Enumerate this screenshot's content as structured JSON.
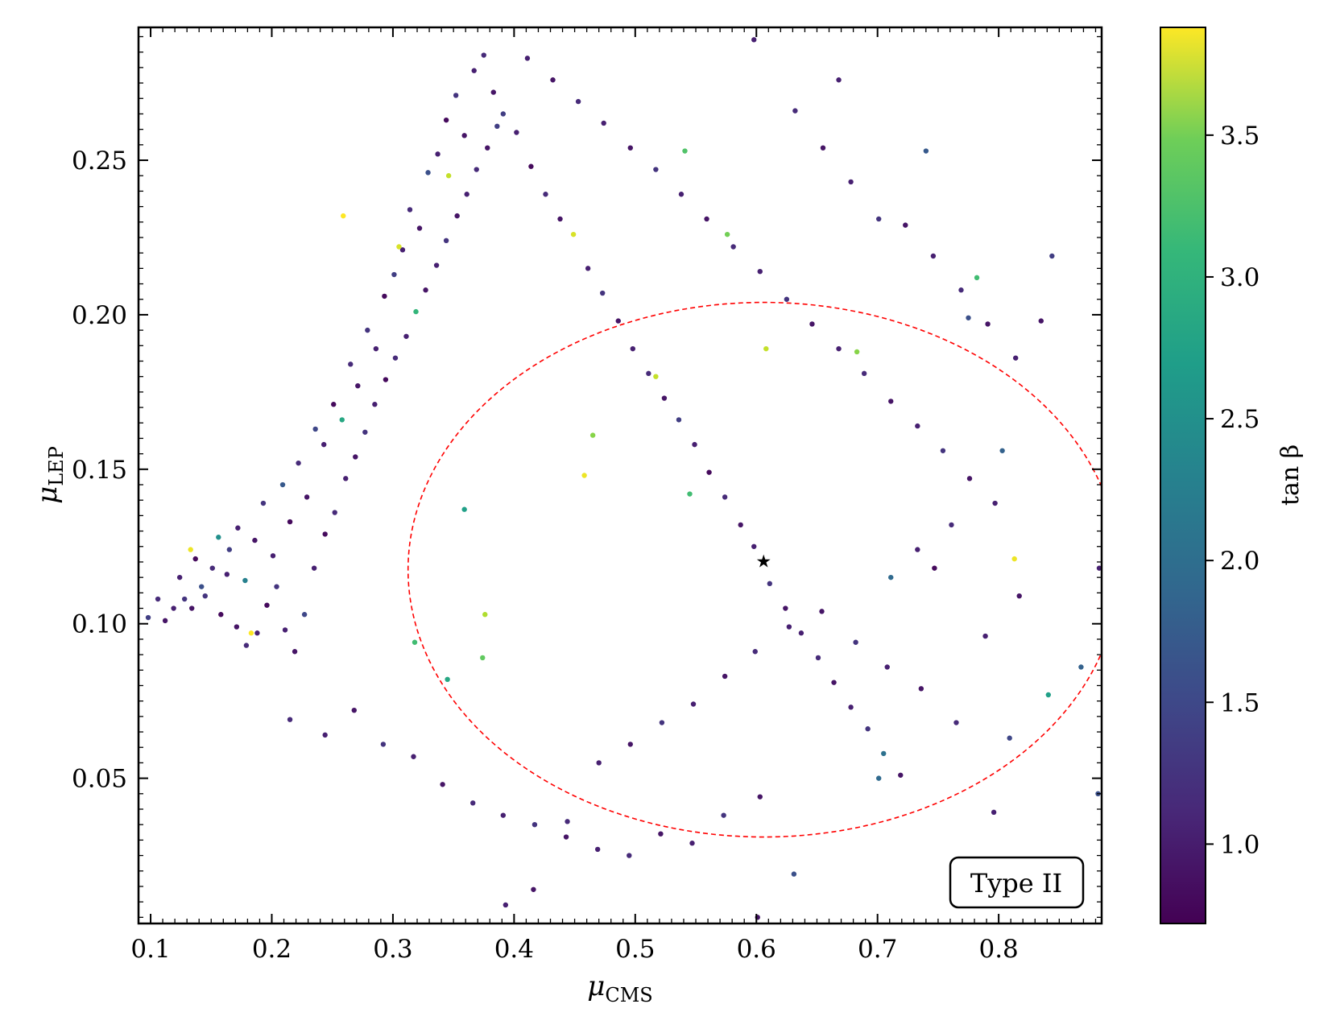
{
  "chart_data": {
    "type": "scatter",
    "title": "",
    "xlabel": {
      "symbol": "μ",
      "subscript": "CMS"
    },
    "ylabel": {
      "symbol": "μ",
      "subscript": "LEP"
    },
    "xlim": [
      0.09,
      0.885
    ],
    "ylim": [
      0.003,
      0.293
    ],
    "xticks": [
      0.1,
      0.2,
      0.3,
      0.4,
      0.5,
      0.6,
      0.7,
      0.8
    ],
    "xtick_labels": [
      "0.1",
      "0.2",
      "0.3",
      "0.4",
      "0.5",
      "0.6",
      "0.7",
      "0.8"
    ],
    "yticks": [
      0.05,
      0.1,
      0.15,
      0.2,
      0.25
    ],
    "ytick_labels": [
      "0.05",
      "0.10",
      "0.15",
      "0.20",
      "0.25"
    ],
    "grid": false,
    "colorbar": {
      "label": "tan β",
      "colormap": "viridis",
      "range": [
        0.72,
        3.88
      ],
      "ticks": [
        1.0,
        1.5,
        2.0,
        2.5,
        3.0,
        3.5
      ],
      "tick_labels": [
        "1.0",
        "1.5",
        "2.0",
        "2.5",
        "3.0",
        "3.5"
      ]
    },
    "best_fit_marker": {
      "x": 0.606,
      "y": 0.12,
      "color": "#ff00ff",
      "shape": "star"
    },
    "ellipse": {
      "center_x": 0.606,
      "center_y": 0.1175,
      "semi_axis_x": 0.2935,
      "semi_axis_y": 0.0865,
      "color": "#ff0000",
      "style": "dashed"
    },
    "annotation": "Type II",
    "series": [
      {
        "description_note": "",
        "points": [
          [
            0.128,
            0.108,
            1.2
          ],
          [
            0.134,
            0.105,
            0.9
          ],
          [
            0.142,
            0.112,
            1.5
          ],
          [
            0.151,
            0.118,
            1.1
          ],
          [
            0.158,
            0.103,
            0.8
          ],
          [
            0.165,
            0.124,
            1.3
          ],
          [
            0.172,
            0.131,
            1.0
          ],
          [
            0.178,
            0.114,
            2.1
          ],
          [
            0.186,
            0.127,
            0.9
          ],
          [
            0.193,
            0.139,
            1.2
          ],
          [
            0.201,
            0.122,
            1.0
          ],
          [
            0.209,
            0.145,
            1.6
          ],
          [
            0.215,
            0.133,
            0.8
          ],
          [
            0.222,
            0.152,
            1.1
          ],
          [
            0.229,
            0.141,
            0.9
          ],
          [
            0.236,
            0.163,
            1.4
          ],
          [
            0.243,
            0.158,
            1.0
          ],
          [
            0.251,
            0.171,
            0.8
          ],
          [
            0.258,
            0.166,
            2.6
          ],
          [
            0.265,
            0.184,
            1.1
          ],
          [
            0.271,
            0.177,
            0.9
          ],
          [
            0.279,
            0.195,
            1.2
          ],
          [
            0.286,
            0.189,
            1.0
          ],
          [
            0.293,
            0.206,
            0.8
          ],
          [
            0.301,
            0.213,
            1.3
          ],
          [
            0.308,
            0.221,
            1.0
          ],
          [
            0.314,
            0.234,
            1.1
          ],
          [
            0.322,
            0.228,
            0.9
          ],
          [
            0.329,
            0.246,
            1.5
          ],
          [
            0.337,
            0.252,
            1.0
          ],
          [
            0.344,
            0.263,
            0.8
          ],
          [
            0.352,
            0.271,
            1.2
          ],
          [
            0.359,
            0.258,
            0.9
          ],
          [
            0.367,
            0.279,
            1.0
          ],
          [
            0.375,
            0.284,
            1.1
          ],
          [
            0.383,
            0.272,
            0.9
          ],
          [
            0.391,
            0.265,
            1.3
          ],
          [
            0.402,
            0.259,
            1.0
          ],
          [
            0.414,
            0.248,
            0.8
          ],
          [
            0.426,
            0.239,
            1.1
          ],
          [
            0.438,
            0.231,
            0.9
          ],
          [
            0.449,
            0.226,
            3.7
          ],
          [
            0.461,
            0.215,
            1.0
          ],
          [
            0.473,
            0.207,
            1.2
          ],
          [
            0.486,
            0.198,
            0.9
          ],
          [
            0.498,
            0.189,
            1.0
          ],
          [
            0.511,
            0.181,
            1.1
          ],
          [
            0.524,
            0.173,
            0.9
          ],
          [
            0.536,
            0.166,
            1.3
          ],
          [
            0.549,
            0.158,
            1.0
          ],
          [
            0.561,
            0.149,
            0.8
          ],
          [
            0.574,
            0.141,
            1.1
          ],
          [
            0.587,
            0.132,
            0.9
          ],
          [
            0.598,
            0.125,
            1.0
          ],
          [
            0.611,
            0.113,
            1.2
          ],
          [
            0.624,
            0.105,
            0.9
          ],
          [
            0.637,
            0.097,
            1.0
          ],
          [
            0.651,
            0.089,
            1.1
          ],
          [
            0.664,
            0.081,
            0.9
          ],
          [
            0.678,
            0.073,
            1.0
          ],
          [
            0.692,
            0.066,
            1.2
          ],
          [
            0.705,
            0.058,
            1.9
          ],
          [
            0.719,
            0.051,
            0.9
          ],
          [
            0.733,
            0.124,
            1.0
          ],
          [
            0.747,
            0.118,
            0.8
          ],
          [
            0.761,
            0.132,
            1.1
          ],
          [
            0.775,
            0.199,
            1.5
          ],
          [
            0.789,
            0.096,
            1.0
          ],
          [
            0.803,
            0.156,
            1.7
          ],
          [
            0.817,
            0.109,
            0.9
          ],
          [
            0.813,
            0.121,
            3.8
          ],
          [
            0.841,
            0.077,
            2.5
          ],
          [
            0.844,
            0.219,
            1.3
          ],
          [
            0.683,
            0.188,
            3.3
          ],
          [
            0.608,
            0.189,
            3.6
          ],
          [
            0.517,
            0.18,
            3.6
          ],
          [
            0.458,
            0.148,
            3.8
          ],
          [
            0.465,
            0.161,
            3.3
          ],
          [
            0.545,
            0.142,
            2.9
          ],
          [
            0.576,
            0.226,
            3.2
          ],
          [
            0.541,
            0.253,
            3.0
          ],
          [
            0.782,
            0.212,
            2.9
          ],
          [
            0.74,
            0.253,
            1.6
          ],
          [
            0.668,
            0.276,
            1.0
          ],
          [
            0.711,
            0.115,
            1.8
          ],
          [
            0.701,
            0.05,
            1.8
          ],
          [
            0.868,
            0.086,
            1.7
          ],
          [
            0.883,
            0.118,
            1.0
          ],
          [
            0.882,
            0.045,
            1.5
          ],
          [
            0.119,
            0.105,
            1.0
          ],
          [
            0.112,
            0.101,
            0.9
          ],
          [
            0.106,
            0.108,
            1.1
          ],
          [
            0.098,
            0.102,
            1.3
          ],
          [
            0.124,
            0.115,
            1.0
          ],
          [
            0.137,
            0.121,
            0.8
          ],
          [
            0.145,
            0.109,
            1.2
          ],
          [
            0.156,
            0.128,
            2.3
          ],
          [
            0.163,
            0.116,
            1.0
          ],
          [
            0.171,
            0.099,
            0.9
          ],
          [
            0.179,
            0.093,
            1.1
          ],
          [
            0.188,
            0.097,
            1.0
          ],
          [
            0.196,
            0.106,
            0.8
          ],
          [
            0.204,
            0.112,
            1.2
          ],
          [
            0.211,
            0.098,
            1.0
          ],
          [
            0.219,
            0.091,
            0.9
          ],
          [
            0.227,
            0.103,
            1.4
          ],
          [
            0.235,
            0.118,
            1.0
          ],
          [
            0.244,
            0.129,
            0.8
          ],
          [
            0.252,
            0.136,
            1.1
          ],
          [
            0.261,
            0.147,
            1.0
          ],
          [
            0.269,
            0.154,
            0.9
          ],
          [
            0.277,
            0.162,
            1.2
          ],
          [
            0.285,
            0.171,
            1.0
          ],
          [
            0.294,
            0.179,
            0.8
          ],
          [
            0.302,
            0.186,
            1.1
          ],
          [
            0.311,
            0.193,
            1.0
          ],
          [
            0.319,
            0.201,
            2.8
          ],
          [
            0.327,
            0.208,
            0.9
          ],
          [
            0.336,
            0.216,
            1.0
          ],
          [
            0.344,
            0.224,
            1.2
          ],
          [
            0.353,
            0.232,
            0.9
          ],
          [
            0.361,
            0.239,
            1.0
          ],
          [
            0.369,
            0.247,
            1.1
          ],
          [
            0.378,
            0.254,
            0.9
          ],
          [
            0.386,
            0.261,
            1.3
          ],
          [
            0.259,
            0.232,
            3.9
          ],
          [
            0.305,
            0.222,
            3.7
          ],
          [
            0.346,
            0.245,
            3.6
          ],
          [
            0.376,
            0.103,
            3.5
          ],
          [
            0.359,
            0.137,
            2.5
          ],
          [
            0.318,
            0.094,
            2.9
          ],
          [
            0.345,
            0.082,
            2.6
          ],
          [
            0.374,
            0.089,
            3.1
          ],
          [
            0.183,
            0.097,
            3.9
          ],
          [
            0.133,
            0.124,
            3.8
          ],
          [
            0.215,
            0.069,
            1.1
          ],
          [
            0.244,
            0.064,
            1.0
          ],
          [
            0.268,
            0.072,
            0.9
          ],
          [
            0.292,
            0.061,
            1.2
          ],
          [
            0.317,
            0.057,
            1.0
          ],
          [
            0.341,
            0.048,
            0.9
          ],
          [
            0.366,
            0.042,
            1.1
          ],
          [
            0.391,
            0.038,
            1.0
          ],
          [
            0.417,
            0.035,
            1.2
          ],
          [
            0.443,
            0.031,
            0.9
          ],
          [
            0.469,
            0.027,
            1.0
          ],
          [
            0.495,
            0.025,
            1.1
          ],
          [
            0.521,
            0.032,
            0.9
          ],
          [
            0.547,
            0.029,
            1.0
          ],
          [
            0.573,
            0.038,
            1.2
          ],
          [
            0.603,
            0.044,
            0.9
          ],
          [
            0.631,
            0.019,
            1.5
          ],
          [
            0.601,
            0.005,
            0.9
          ],
          [
            0.393,
            0.009,
            1.0
          ],
          [
            0.416,
            0.014,
            0.9
          ],
          [
            0.444,
            0.036,
            1.1
          ],
          [
            0.47,
            0.055,
            1.0
          ],
          [
            0.496,
            0.061,
            0.9
          ],
          [
            0.522,
            0.068,
            1.2
          ],
          [
            0.548,
            0.074,
            1.0
          ],
          [
            0.574,
            0.083,
            0.9
          ],
          [
            0.599,
            0.091,
            1.1
          ],
          [
            0.627,
            0.099,
            1.0
          ],
          [
            0.654,
            0.104,
            0.9
          ],
          [
            0.682,
            0.094,
            1.2
          ],
          [
            0.708,
            0.086,
            1.0
          ],
          [
            0.736,
            0.079,
            0.9
          ],
          [
            0.765,
            0.068,
            1.1
          ],
          [
            0.796,
            0.039,
            1.0
          ],
          [
            0.809,
            0.063,
            1.4
          ],
          [
            0.411,
            0.283,
            1.0
          ],
          [
            0.432,
            0.276,
            0.9
          ],
          [
            0.453,
            0.269,
            1.1
          ],
          [
            0.474,
            0.262,
            1.0
          ],
          [
            0.496,
            0.254,
            0.9
          ],
          [
            0.517,
            0.247,
            1.2
          ],
          [
            0.538,
            0.239,
            1.0
          ],
          [
            0.559,
            0.231,
            0.9
          ],
          [
            0.581,
            0.222,
            1.1
          ],
          [
            0.603,
            0.214,
            1.0
          ],
          [
            0.625,
            0.205,
            1.2
          ],
          [
            0.646,
            0.197,
            0.9
          ],
          [
            0.668,
            0.189,
            1.0
          ],
          [
            0.689,
            0.181,
            1.1
          ],
          [
            0.711,
            0.172,
            0.9
          ],
          [
            0.733,
            0.164,
            1.0
          ],
          [
            0.754,
            0.156,
            1.2
          ],
          [
            0.776,
            0.147,
            0.9
          ],
          [
            0.797,
            0.139,
            1.0
          ],
          [
            0.598,
            0.289,
            1.0
          ],
          [
            0.632,
            0.266,
            1.1
          ],
          [
            0.655,
            0.254,
            0.9
          ],
          [
            0.678,
            0.243,
            1.0
          ],
          [
            0.701,
            0.231,
            1.2
          ],
          [
            0.723,
            0.229,
            0.9
          ],
          [
            0.746,
            0.219,
            1.0
          ],
          [
            0.769,
            0.208,
            1.1
          ],
          [
            0.791,
            0.197,
            0.9
          ],
          [
            0.814,
            0.186,
            1.0
          ],
          [
            0.835,
            0.198,
            0.9
          ]
        ]
      }
    ]
  }
}
